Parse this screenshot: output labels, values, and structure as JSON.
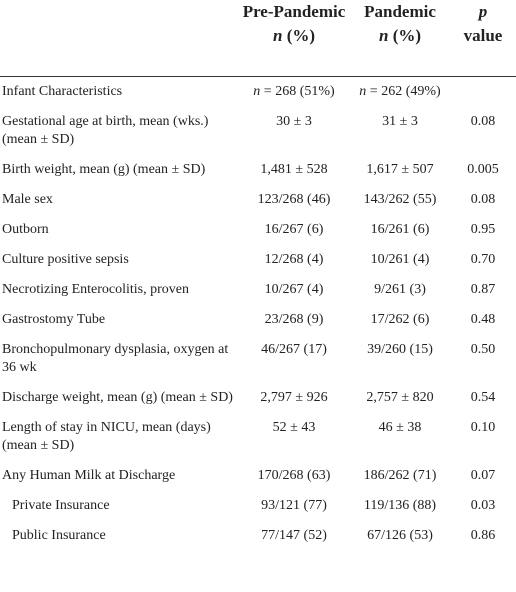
{
  "table": {
    "header": [
      {
        "title": "Pre-Pandemic",
        "em": "n",
        "rest": "(%)"
      },
      {
        "title": "Pandemic",
        "em": "n",
        "rest": "(%)"
      },
      {
        "em": "p",
        "rest": "value"
      }
    ],
    "rows": [
      {
        "label": "Infant Characteristics",
        "pre": {
          "em": "n",
          "rest": "= 268 (51%)"
        },
        "pan": {
          "em": "n",
          "rest": "= 262 (49%)"
        }
      },
      {
        "label": "Gestational age at birth, mean (wks.) (mean ± SD)",
        "pre": "30 ± 3",
        "pan": "31 ± 3",
        "p": "0.08"
      },
      {
        "label": "Birth weight, mean (g) (mean ± SD)",
        "pre": "1,481 ± 528",
        "pan": "1,617 ± 507",
        "p": "0.005"
      },
      {
        "label": "Male sex",
        "pre": "123/268 (46)",
        "pan": "143/262 (55)",
        "p": "0.08"
      },
      {
        "label": "Outborn",
        "pre": "16/267 (6)",
        "pan": "16/261 (6)",
        "p": "0.95"
      },
      {
        "label": "Culture positive sepsis",
        "pre": "12/268 (4)",
        "pan": "10/261 (4)",
        "p": "0.70"
      },
      {
        "label": "Necrotizing Enterocolitis, proven",
        "pre": "10/267 (4)",
        "pan": "9/261 (3)",
        "p": "0.87"
      },
      {
        "label": "Gastrostomy Tube",
        "pre": "23/268 (9)",
        "pan": "17/262 (6)",
        "p": "0.48"
      },
      {
        "label": "Bronchopulmonary dysplasia, oxygen at 36 wk",
        "pre": "46/267 (17)",
        "pan": "39/260 (15)",
        "p": "0.50"
      },
      {
        "label": "Discharge weight, mean (g) (mean ± SD)",
        "pre": "2,797 ± 926",
        "pan": "2,757 ± 820",
        "p": "0.54"
      },
      {
        "label": "Length of stay in NICU, mean (days) (mean ± SD)",
        "pre": "52 ± 43",
        "pan": "46 ± 38",
        "p": "0.10"
      },
      {
        "label": "Any Human Milk at Discharge",
        "pre": "170/268 (63)",
        "pan": "186/262 (71)",
        "p": "0.07"
      },
      {
        "label": "Private Insurance",
        "pre": "93/121 (77)",
        "pan": "119/136 (88)",
        "p": "0.03",
        "indent": true
      },
      {
        "label": "Public Insurance",
        "pre": "77/147 (52)",
        "pan": "67/126 (53)",
        "p": "0.86",
        "indent": true
      }
    ]
  }
}
